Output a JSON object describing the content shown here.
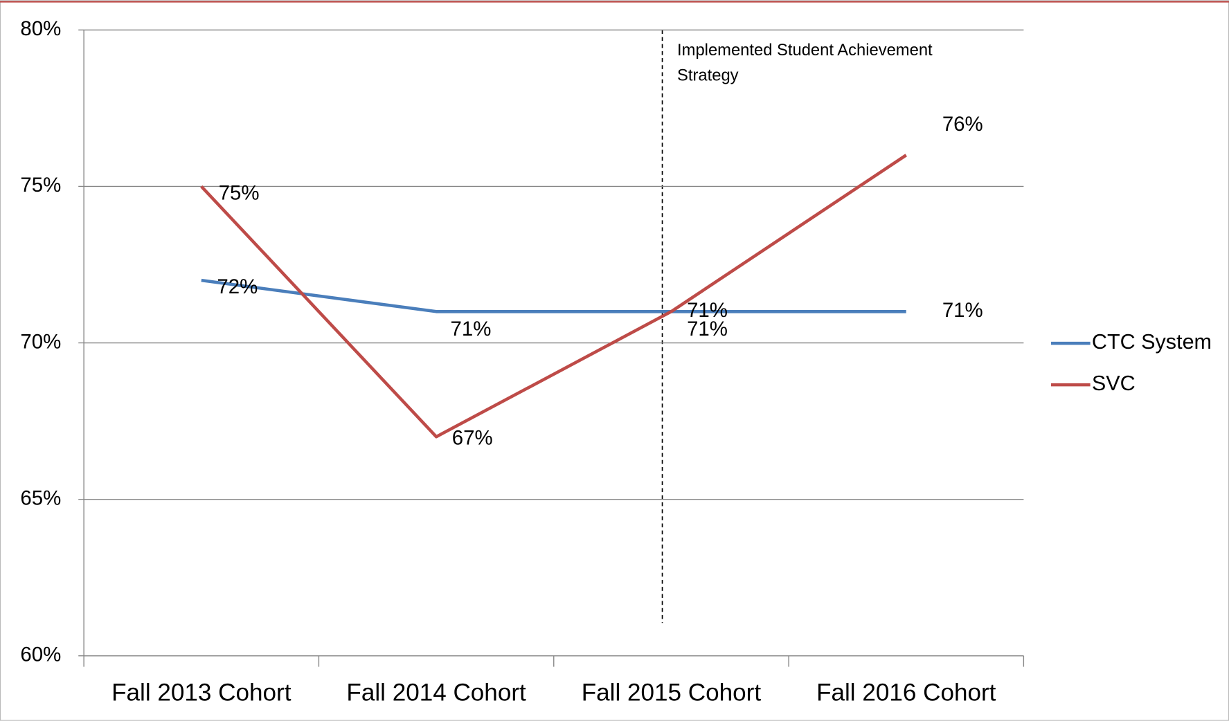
{
  "chart_data": {
    "type": "line",
    "categories": [
      "Fall  2013 Cohort",
      "Fall  2014 Cohort",
      "Fall 2015 Cohort",
      "Fall 2016 Cohort"
    ],
    "series": [
      {
        "name": "CTC System",
        "color": "#4a7ebb",
        "values": [
          72,
          71,
          71,
          71
        ],
        "value_labels": [
          "72%",
          "71%",
          "71%",
          "71%"
        ]
      },
      {
        "name": "SVC",
        "color": "#be4b48",
        "values": [
          75,
          67,
          71,
          76
        ],
        "value_labels": [
          "75%",
          "67%",
          "71%",
          "76%"
        ]
      }
    ],
    "ylim": [
      60,
      80
    ],
    "yticks": [
      {
        "value": 60,
        "label": "60%"
      },
      {
        "value": 65,
        "label": "65%"
      },
      {
        "value": 70,
        "label": "70%"
      },
      {
        "value": 75,
        "label": "75%"
      },
      {
        "value": 80,
        "label": "80%"
      }
    ],
    "grid": true,
    "legend": "right",
    "annotation": [
      "Implemented  Student Achievement",
      "Strategy"
    ]
  }
}
